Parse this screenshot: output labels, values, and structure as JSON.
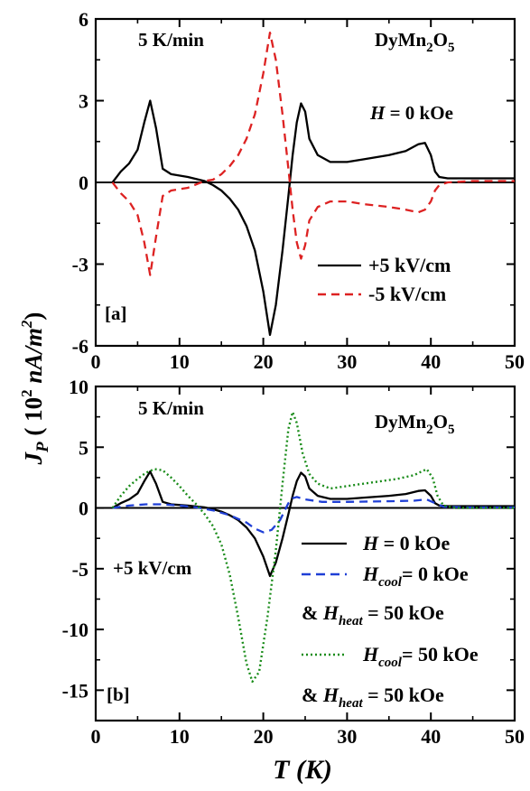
{
  "chart_data": [
    {
      "type": "line",
      "panel_label": "[a]",
      "xlim": [
        0,
        50
      ],
      "ylim": [
        -6,
        6
      ],
      "xticks": [
        0,
        10,
        20,
        30,
        40,
        50
      ],
      "yticks": [
        -6,
        -3,
        0,
        3,
        6
      ],
      "annotations": {
        "rate": "5 K/min",
        "compound": "DyMn2O5",
        "field": "H = 0 kOe"
      },
      "legend_placement": "bottom-right",
      "series": [
        {
          "name": "+5 kV/cm",
          "style": "solid",
          "color": "#000000",
          "x": [
            2,
            3,
            4,
            5,
            5.8,
            6.5,
            7.2,
            8,
            9,
            11,
            13,
            14,
            15,
            16,
            17,
            18,
            19,
            20,
            20.8,
            21.5,
            22.3,
            23,
            23.5,
            24,
            24.5,
            25,
            25.5,
            26.5,
            28,
            30,
            32,
            35,
            37,
            38.5,
            39.3,
            40,
            40.5,
            41,
            42,
            45,
            48,
            50
          ],
          "y": [
            0,
            0.4,
            0.7,
            1.2,
            2.2,
            3.0,
            2.0,
            0.5,
            0.3,
            0.2,
            0.05,
            -0.1,
            -0.3,
            -0.6,
            -1.0,
            -1.6,
            -2.5,
            -4.0,
            -5.6,
            -4.5,
            -2.5,
            -0.5,
            1.0,
            2.2,
            2.9,
            2.6,
            1.6,
            1.0,
            0.75,
            0.75,
            0.85,
            1.0,
            1.15,
            1.4,
            1.45,
            1.0,
            0.4,
            0.2,
            0.15,
            0.15,
            0.15,
            0.15
          ]
        },
        {
          "name": "-5 kV/cm",
          "style": "dashed",
          "color": "#dd2222",
          "x": [
            2,
            3,
            4,
            5,
            5.8,
            6.5,
            7.2,
            8,
            9,
            11,
            13,
            14,
            15,
            16,
            17,
            18,
            19,
            20,
            20.8,
            21.5,
            22.3,
            23,
            23.5,
            24,
            24.5,
            25,
            25.5,
            26.5,
            28,
            30,
            32,
            35,
            37,
            38.5,
            39.3,
            40,
            40.5,
            41,
            42,
            45,
            48,
            50
          ],
          "y": [
            0,
            -0.4,
            -0.7,
            -1.2,
            -2.2,
            -3.4,
            -2.0,
            -0.5,
            -0.3,
            -0.2,
            0.05,
            0.1,
            0.3,
            0.6,
            1.0,
            1.6,
            2.5,
            4.0,
            5.5,
            4.5,
            2.5,
            0.5,
            -1.0,
            -2.2,
            -2.8,
            -2.3,
            -1.4,
            -0.9,
            -0.7,
            -0.7,
            -0.8,
            -0.9,
            -1.0,
            -1.1,
            -1.0,
            -0.7,
            -0.3,
            -0.1,
            0.0,
            0.05,
            0.05,
            0.05
          ]
        }
      ]
    },
    {
      "type": "line",
      "panel_label": "[b]",
      "xlim": [
        0,
        50
      ],
      "ylim": [
        -17.5,
        10
      ],
      "xticks": [
        0,
        10,
        20,
        30,
        40,
        50
      ],
      "yticks": [
        -15,
        -10,
        -5,
        0,
        5,
        10
      ],
      "annotations": {
        "rate": "5 K/min",
        "compound": "DyMn2O5",
        "voltage": "+5 kV/cm"
      },
      "legend_placement": "bottom-right",
      "series": [
        {
          "name": "H = 0 kOe",
          "style": "solid",
          "color": "#000000",
          "x": [
            2,
            3,
            4,
            5,
            5.8,
            6.5,
            7.2,
            8,
            9,
            11,
            13,
            14,
            15,
            16,
            17,
            18,
            19,
            20,
            20.8,
            21.5,
            22.3,
            23,
            23.5,
            24,
            24.5,
            25,
            25.5,
            26.5,
            28,
            30,
            32,
            35,
            37,
            38.5,
            39.3,
            40,
            40.5,
            41,
            42,
            45,
            48,
            50
          ],
          "y": [
            0,
            0.4,
            0.7,
            1.2,
            2.2,
            3.0,
            2.0,
            0.5,
            0.3,
            0.2,
            0.05,
            -0.1,
            -0.3,
            -0.6,
            -1.0,
            -1.6,
            -2.5,
            -4.0,
            -5.6,
            -4.5,
            -2.5,
            -0.5,
            1.0,
            2.2,
            2.9,
            2.6,
            1.6,
            1.0,
            0.75,
            0.75,
            0.85,
            1.0,
            1.15,
            1.4,
            1.45,
            1.0,
            0.4,
            0.2,
            0.15,
            0.15,
            0.15,
            0.15
          ]
        },
        {
          "name": "Hcool = 0 kOe & Hheat = 50 kOe",
          "style": "dashed",
          "color": "#1f3fd6",
          "x": [
            2,
            4,
            6,
            8,
            10,
            12,
            14,
            16,
            18,
            19,
            20,
            21,
            22,
            22.5,
            23,
            23.5,
            24,
            25,
            27,
            30,
            35,
            38,
            39.5,
            40.5,
            41.5,
            45,
            50
          ],
          "y": [
            0,
            0.2,
            0.3,
            0.3,
            0.2,
            0.05,
            -0.2,
            -0.6,
            -1.2,
            -1.7,
            -2.0,
            -1.8,
            -1.0,
            -0.3,
            0.4,
            0.8,
            0.9,
            0.7,
            0.5,
            0.5,
            0.55,
            0.6,
            0.7,
            0.4,
            0.1,
            0.05,
            0.05
          ]
        },
        {
          "name": "Hcool = 50 kOe & Hheat = 50 kOe",
          "style": "dotted",
          "color": "#1a8c1a",
          "x": [
            2,
            3,
            4,
            5,
            6,
            7,
            8,
            9,
            10,
            11,
            12,
            13,
            14,
            15,
            16,
            17,
            18,
            18.7,
            19.5,
            20.5,
            21.5,
            22.3,
            23,
            23.5,
            24,
            24.7,
            25.5,
            26.5,
            28,
            30,
            33,
            36,
            38,
            39.5,
            40.2,
            40.8,
            41.5,
            43,
            46,
            50
          ],
          "y": [
            0,
            1.0,
            1.8,
            2.4,
            2.9,
            3.2,
            3.1,
            2.5,
            1.8,
            1.0,
            0.3,
            -0.5,
            -1.5,
            -3.0,
            -5.5,
            -9.0,
            -12.8,
            -14.3,
            -13.5,
            -9.0,
            -3.5,
            2.0,
            6.5,
            7.9,
            7.0,
            4.5,
            2.8,
            2.0,
            1.6,
            1.8,
            2.1,
            2.4,
            2.7,
            3.2,
            2.5,
            1.0,
            0.2,
            0.0,
            0.0,
            0.0
          ]
        }
      ]
    }
  ],
  "shared": {
    "ylabel": "J_P ( 10^2 nA/m^2 )",
    "xlabel": "T (K)"
  },
  "legend_b": {
    "line1": "H = 0 kOe",
    "line2": "H_cool = 0 kOe",
    "line3": "& H_heat = 50 kOe",
    "line4": "H_cool = 50 kOe",
    "line5": "& H_heat = 50 kOe"
  }
}
